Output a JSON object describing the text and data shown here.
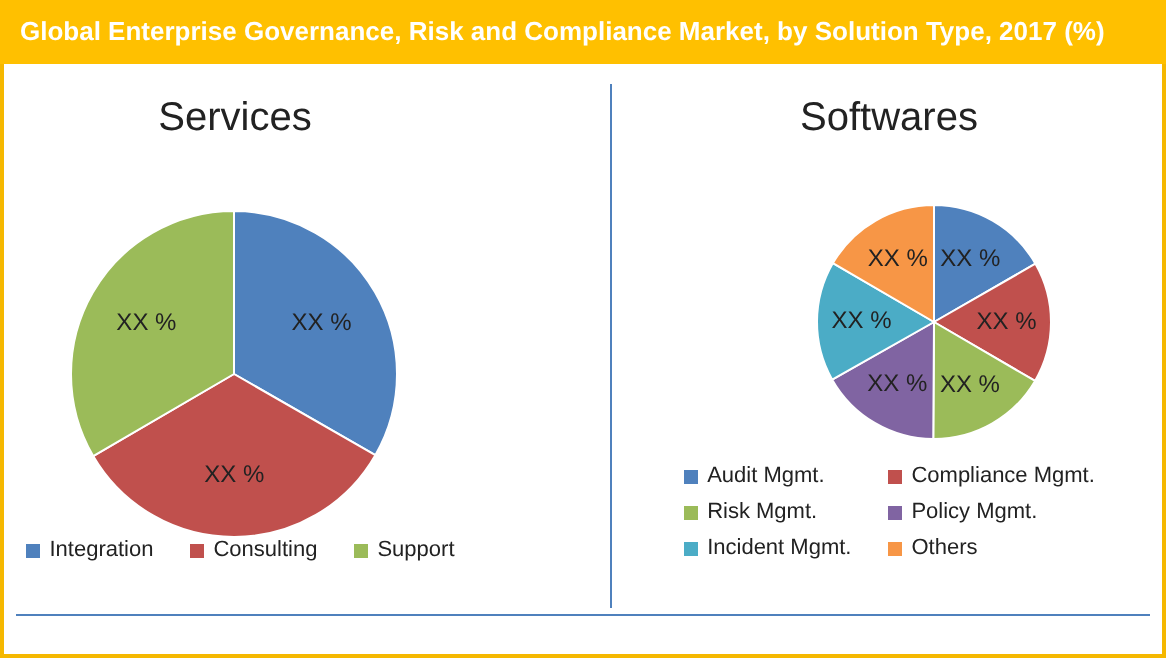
{
  "chart_data": [
    {
      "type": "pie",
      "title": "Global Enterprise Governance, Risk and Compliance Market, by Solution Type, 2017 (%)",
      "subtitle": "Services",
      "categories": [
        "Integration",
        "Consulting",
        "Support"
      ],
      "values": [
        33.3,
        33.3,
        33.4
      ],
      "colors": [
        "#4f81bd",
        "#c0504d",
        "#9bbb59"
      ],
      "value_labels": [
        "XX %",
        "XX %",
        "XX %"
      ],
      "legend": "bottom"
    },
    {
      "type": "pie",
      "title": "Softwares",
      "categories": [
        "Audit Mgmt.",
        "Compliance Mgmt.",
        "Risk Mgmt.",
        "Policy Mgmt.",
        "Incident Mgmt.",
        "Others"
      ],
      "values": [
        16.7,
        16.7,
        16.7,
        16.7,
        16.6,
        16.6
      ],
      "colors": [
        "#4f81bd",
        "#c0504d",
        "#9bbb59",
        "#8064a2",
        "#4bacc6",
        "#f79646"
      ],
      "value_labels": [
        "XX %",
        "XX %",
        "XX %",
        "XX %",
        "XX %",
        "XX %"
      ],
      "legend": "bottom"
    }
  ]
}
